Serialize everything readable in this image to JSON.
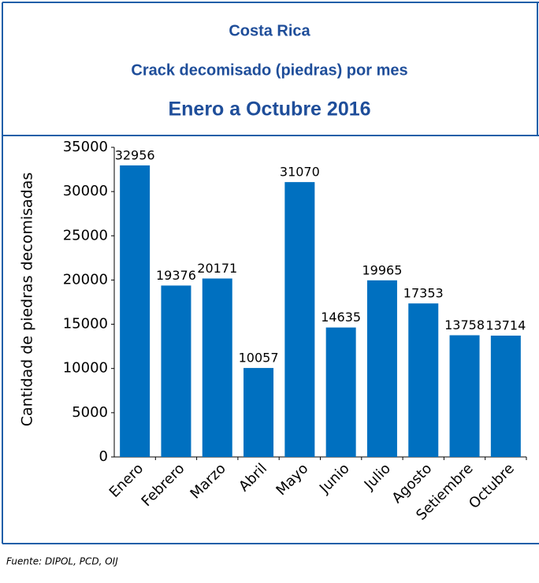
{
  "chart_data": {
    "type": "bar",
    "title": "Costa Rica",
    "subtitle": "Crack decomisado (piedras) por mes",
    "period": "Enero a Octubre 2016",
    "y_label": "Cantidad de piedras decomisadas",
    "source": "Fuente: DIPOL, PCD, OIJ",
    "categories": [
      "Enero",
      "Febrero",
      "Marzo",
      "Abril",
      "Mayo",
      "Junio",
      "Julio",
      "Agosto",
      "Setiembre",
      "Octubre"
    ],
    "values": [
      32956,
      19376,
      20171,
      10057,
      31070,
      14635,
      19965,
      17353,
      13758,
      13714
    ],
    "color": "#0070c0",
    "ylim": [
      0,
      35000
    ],
    "yticks": [
      0,
      5000,
      10000,
      15000,
      20000,
      25000,
      30000,
      35000
    ]
  }
}
